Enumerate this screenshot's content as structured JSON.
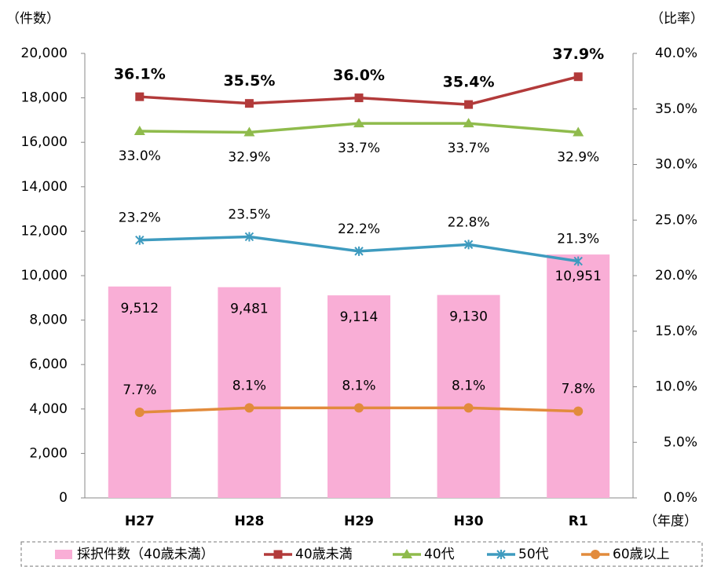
{
  "chart_data": {
    "type": "bar_line",
    "ylabel": "（件数）",
    "y2label": "（比率）",
    "xlabel": "（年度）",
    "categories": [
      "H27",
      "H28",
      "H29",
      "H30",
      "R1"
    ],
    "bar": {
      "name": "採択件数（40歳未満）",
      "color": "#f9aed6",
      "values": [
        9512,
        9481,
        9114,
        9130,
        10951
      ],
      "value_labels": [
        "9,512",
        "9,481",
        "9,114",
        "9,130",
        "10,951"
      ]
    },
    "series": [
      {
        "name": "40歳未満",
        "color": "#b23a3a",
        "marker": "square",
        "label_pos": "above",
        "bold": true,
        "axis": "y2",
        "values": [
          36.1,
          35.5,
          36.0,
          35.4,
          37.9
        ],
        "value_labels": [
          "36.1%",
          "35.5%",
          "36.0%",
          "35.4%",
          "37.9%"
        ]
      },
      {
        "name": "40代",
        "color": "#8fbb4c",
        "marker": "triangle",
        "label_pos": "below",
        "bold": false,
        "axis": "y2",
        "values": [
          33.0,
          32.9,
          33.7,
          33.7,
          32.9
        ],
        "value_labels": [
          "33.0%",
          "32.9%",
          "33.7%",
          "33.7%",
          "32.9%"
        ]
      },
      {
        "name": "50代",
        "color": "#3e9bbf",
        "marker": "star",
        "label_pos": "above",
        "bold": false,
        "axis": "y2",
        "values": [
          23.2,
          23.5,
          22.2,
          22.8,
          21.3
        ],
        "value_labels": [
          "23.2%",
          "23.5%",
          "22.2%",
          "22.8%",
          "21.3%"
        ]
      },
      {
        "name": "60歳以上",
        "color": "#e28b3c",
        "marker": "circle",
        "label_pos": "above",
        "bold": false,
        "axis": "y2",
        "values": [
          7.7,
          8.1,
          8.1,
          8.1,
          7.8
        ],
        "value_labels": [
          "7.7%",
          "8.1%",
          "8.1%",
          "8.1%",
          "7.8%"
        ]
      }
    ],
    "ylim": [
      0,
      20000
    ],
    "yticks": [
      0,
      {
        "value": 2000,
        "label": "2,000"
      },
      {
        "value": 4000,
        "label": "4,000"
      },
      {
        "value": 6000,
        "label": "6,000"
      },
      {
        "value": 8000,
        "label": "8,000"
      },
      {
        "value": 10000,
        "label": "10,000"
      },
      {
        "value": 12000,
        "label": "12,000"
      },
      {
        "value": 14000,
        "label": "14,000"
      },
      {
        "value": 16000,
        "label": "16,000"
      },
      {
        "value": 18000,
        "label": "18,000"
      },
      {
        "value": 20000,
        "label": "20,000"
      }
    ],
    "y2lim": [
      0,
      40
    ],
    "y2ticks": [
      {
        "value": 0,
        "label": "0.0%"
      },
      {
        "value": 5,
        "label": "5.0%"
      },
      {
        "value": 10,
        "label": "10.0%"
      },
      {
        "value": 15,
        "label": "15.0%"
      },
      {
        "value": 20,
        "label": "20.0%"
      },
      {
        "value": 25,
        "label": "25.0%"
      },
      {
        "value": 30,
        "label": "30.0%"
      },
      {
        "value": 35,
        "label": "35.0%"
      },
      {
        "value": 40,
        "label": "40.0%"
      }
    ],
    "grid": false
  }
}
